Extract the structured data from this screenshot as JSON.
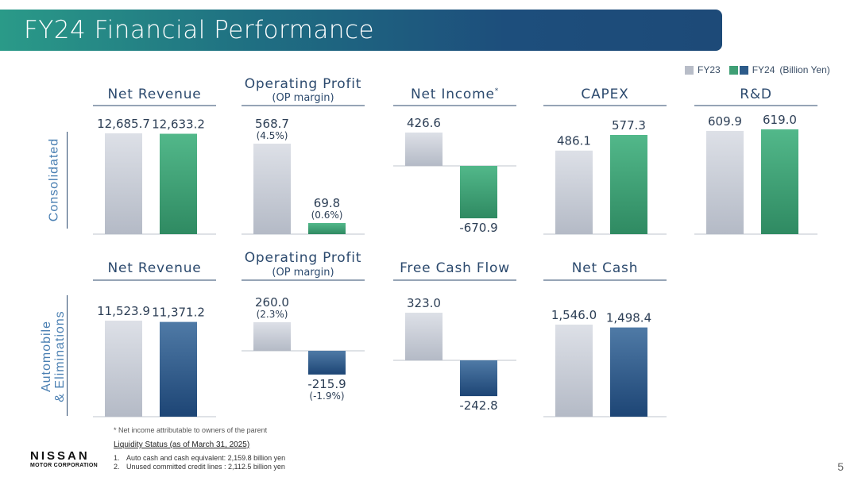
{
  "header": {
    "title": "FY24 Financial Performance"
  },
  "legend": {
    "fy23_label": "FY23",
    "fy24_label": "FY24",
    "unit": "(Billion Yen)"
  },
  "colors": {
    "fy23": "#c8ccd6",
    "fy24_consolidated": "#3f9f75",
    "fy24_auto": "#2d5b8a",
    "text": "#2c4a6e",
    "axis": "#bfc4cc"
  },
  "sections": {
    "consolidated": "Consolidated",
    "auto_line1": "Automobile",
    "auto_line2": "& Eliminations"
  },
  "chart_data": [
    {
      "type": "bar",
      "group": "Consolidated",
      "title": "Net Revenue",
      "subtitle": "",
      "categories": [
        "FY23",
        "FY24"
      ],
      "values": [
        12685.7,
        12633.2
      ],
      "labels": [
        "12,685.7",
        "12,633.2"
      ],
      "sub_labels": [
        "",
        ""
      ]
    },
    {
      "type": "bar",
      "group": "Consolidated",
      "title": "Operating Profit",
      "subtitle": "(OP margin)",
      "categories": [
        "FY23",
        "FY24"
      ],
      "values": [
        568.7,
        69.8
      ],
      "labels": [
        "568.7",
        "69.8"
      ],
      "sub_labels": [
        "(4.5%)",
        "(0.6%)"
      ]
    },
    {
      "type": "bar",
      "group": "Consolidated",
      "title": "Net Income",
      "title_mark": "*",
      "subtitle": "",
      "categories": [
        "FY23",
        "FY24"
      ],
      "values": [
        426.6,
        -670.9
      ],
      "labels": [
        "426.6",
        "-670.9"
      ],
      "sub_labels": [
        "",
        ""
      ]
    },
    {
      "type": "bar",
      "group": "Consolidated",
      "title": "CAPEX",
      "subtitle": "",
      "categories": [
        "FY23",
        "FY24"
      ],
      "values": [
        486.1,
        577.3
      ],
      "labels": [
        "486.1",
        "577.3"
      ],
      "sub_labels": [
        "",
        ""
      ]
    },
    {
      "type": "bar",
      "group": "Consolidated",
      "title": "R&D",
      "subtitle": "",
      "categories": [
        "FY23",
        "FY24"
      ],
      "values": [
        609.9,
        619.0
      ],
      "labels": [
        "609.9",
        "619.0"
      ],
      "sub_labels": [
        "",
        ""
      ]
    },
    {
      "type": "bar",
      "group": "Automobile & Eliminations",
      "title": "Net Revenue",
      "subtitle": "",
      "categories": [
        "FY23",
        "FY24"
      ],
      "values": [
        11523.9,
        11371.2
      ],
      "labels": [
        "11,523.9",
        "11,371.2"
      ],
      "sub_labels": [
        "",
        ""
      ]
    },
    {
      "type": "bar",
      "group": "Automobile & Eliminations",
      "title": "Operating Profit",
      "subtitle": "(OP margin)",
      "categories": [
        "FY23",
        "FY24"
      ],
      "values": [
        260.0,
        -215.9
      ],
      "labels": [
        "260.0",
        "-215.9"
      ],
      "sub_labels": [
        "(2.3%)",
        "(-1.9%)"
      ]
    },
    {
      "type": "bar",
      "group": "Automobile & Eliminations",
      "title": "Free Cash Flow",
      "subtitle": "",
      "categories": [
        "FY23",
        "FY24"
      ],
      "values": [
        323.0,
        -242.8
      ],
      "labels": [
        "323.0",
        "-242.8"
      ],
      "sub_labels": [
        "",
        ""
      ]
    },
    {
      "type": "bar",
      "group": "Automobile & Eliminations",
      "title": "Net Cash",
      "subtitle": "",
      "categories": [
        "FY23",
        "FY24"
      ],
      "values": [
        1546.0,
        1498.4
      ],
      "labels": [
        "1,546.0",
        "1,498.4"
      ],
      "sub_labels": [
        "",
        ""
      ]
    }
  ],
  "footer": {
    "footnote": "* Net income attributable to owners of the parent",
    "liquidity_title": "Liquidity Status (as of March 31, 2025)",
    "liquidity_items": [
      {
        "num": "1.",
        "text": "Auto cash and cash equivalent: 2,159.8 billion yen"
      },
      {
        "num": "2.",
        "text": "Unused committed credit lines : 2,112.5 billion yen"
      }
    ],
    "logo_main": "NISSAN",
    "logo_sub": "MOTOR CORPORATION",
    "page_number": "5"
  }
}
